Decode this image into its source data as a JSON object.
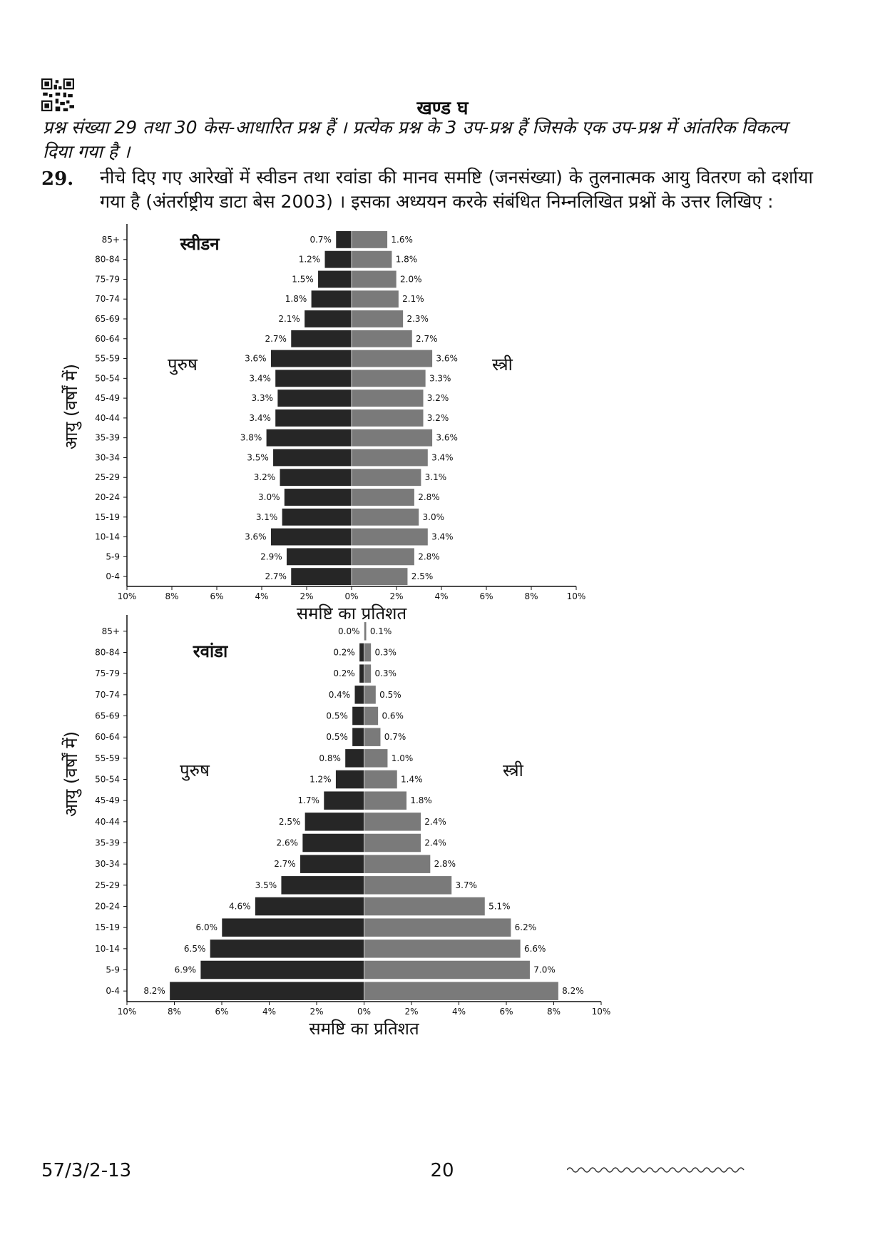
{
  "header": {
    "section_title": "खण्ड घ",
    "instruction": "प्रश्न संख्या 29 तथा 30 केस-आधारित प्रश्न हैं । प्रत्येक प्रश्न के 3 उप-प्रश्न हैं जिसके एक उप-प्रश्न में आंतरिक विकल्प दिया गया है ।"
  },
  "question": {
    "number": "29.",
    "text": "नीचे दिए गए आरेखों में स्वीडन तथा रवांडा की मानव समष्टि (जनसंख्या) के तुलनात्मक आयु वितरण को दर्शाया गया है (अंतर्राष्ट्रीय डाटा बेस 2003) । इसका अध्ययन करके संबंधित निम्नलिखित प्रश्नों के उत्तर लिखिए :"
  },
  "colors": {
    "male": "#262626",
    "female": "#7a7a7a"
  },
  "chart_data": [
    {
      "type": "bar",
      "orientation": "horizontal-population-pyramid",
      "title": "स्वीडन",
      "xlabel": "समष्टि का प्रतिशत",
      "ylabel": "आयु (वर्षों में)",
      "male_label": "पुरुष",
      "female_label": "स्त्री",
      "x_ticks": [
        "10%",
        "8%",
        "6%",
        "4%",
        "2%",
        "0%",
        "2%",
        "4%",
        "6%",
        "8%",
        "10%"
      ],
      "xlim": [
        -10,
        10
      ],
      "categories": [
        "85+",
        "80-84",
        "75-79",
        "70-74",
        "65-69",
        "60-64",
        "55-59",
        "50-54",
        "45-49",
        "40-44",
        "35-39",
        "30-34",
        "25-29",
        "20-24",
        "15-19",
        "10-14",
        "5-9",
        "0-4"
      ],
      "series": [
        {
          "name": "पुरुष",
          "values": [
            0.7,
            1.2,
            1.5,
            1.8,
            2.1,
            2.7,
            3.6,
            3.4,
            3.3,
            3.4,
            3.8,
            3.5,
            3.2,
            3.0,
            3.1,
            3.6,
            2.9,
            2.7
          ],
          "labels": [
            "0.7%",
            "1.2%",
            "1.5%",
            "1.8%",
            "2.1%",
            "2.7%",
            "3.6%",
            "3.4%",
            "3.3%",
            "3.4%",
            "3.8%",
            "3.5%",
            "3.2%",
            "3.0%",
            "3.1%",
            "3.6%",
            "2.9%",
            "2.7%"
          ]
        },
        {
          "name": "स्त्री",
          "values": [
            1.6,
            1.8,
            2.0,
            2.1,
            2.3,
            2.7,
            3.6,
            3.3,
            3.2,
            3.2,
            3.6,
            3.4,
            3.1,
            2.8,
            3.0,
            3.4,
            2.8,
            2.5
          ],
          "labels": [
            "1.6%",
            "1.8%",
            "2.0%",
            "2.1%",
            "2.3%",
            "2.7%",
            "3.6%",
            "3.3%",
            "3.2%",
            "3.2%",
            "3.6%",
            "3.4%",
            "3.1%",
            "2.8%",
            "3.0%",
            "3.4%",
            "2.8%",
            "2.5%"
          ]
        }
      ]
    },
    {
      "type": "bar",
      "orientation": "horizontal-population-pyramid",
      "title": "रवांडा",
      "xlabel": "समष्टि का प्रतिशत",
      "ylabel": "आयु (वर्षों में)",
      "male_label": "पुरुष",
      "female_label": "स्त्री",
      "x_ticks": [
        "10%",
        "8%",
        "6%",
        "4%",
        "2%",
        "0%",
        "2%",
        "4%",
        "6%",
        "8%",
        "10%"
      ],
      "xlim": [
        -10,
        10
      ],
      "categories": [
        "85+",
        "80-84",
        "75-79",
        "70-74",
        "65-69",
        "60-64",
        "55-59",
        "50-54",
        "45-49",
        "40-44",
        "35-39",
        "30-34",
        "25-29",
        "20-24",
        "15-19",
        "10-14",
        "5-9",
        "0-4"
      ],
      "series": [
        {
          "name": "पुरुष",
          "values": [
            0.0,
            0.2,
            0.2,
            0.4,
            0.5,
            0.5,
            0.8,
            1.2,
            1.7,
            2.5,
            2.6,
            2.7,
            3.5,
            4.6,
            6.0,
            6.5,
            6.9,
            8.2
          ],
          "labels": [
            "0.0%",
            "0.2%",
            "0.2%",
            "0.4%",
            "0.5%",
            "0.5%",
            "0.8%",
            "1.2%",
            "1.7%",
            "2.5%",
            "2.6%",
            "2.7%",
            "3.5%",
            "4.6%",
            "6.0%",
            "6.5%",
            "6.9%",
            "8.2%"
          ]
        },
        {
          "name": "स्त्री",
          "values": [
            0.1,
            0.3,
            0.3,
            0.5,
            0.6,
            0.7,
            1.0,
            1.4,
            1.8,
            2.4,
            2.4,
            2.8,
            3.7,
            5.1,
            6.2,
            6.6,
            7.0,
            8.2
          ],
          "labels": [
            "0.1%",
            "0.3%",
            "0.3%",
            "0.5%",
            "0.6%",
            "0.7%",
            "1.0%",
            "1.4%",
            "1.8%",
            "2.4%",
            "2.4%",
            "2.8%",
            "3.7%",
            "5.1%",
            "6.2%",
            "6.6%",
            "7.0%",
            "8.2%"
          ]
        }
      ]
    }
  ],
  "footer": {
    "code": "57/3/2-13",
    "page_number": "20"
  }
}
